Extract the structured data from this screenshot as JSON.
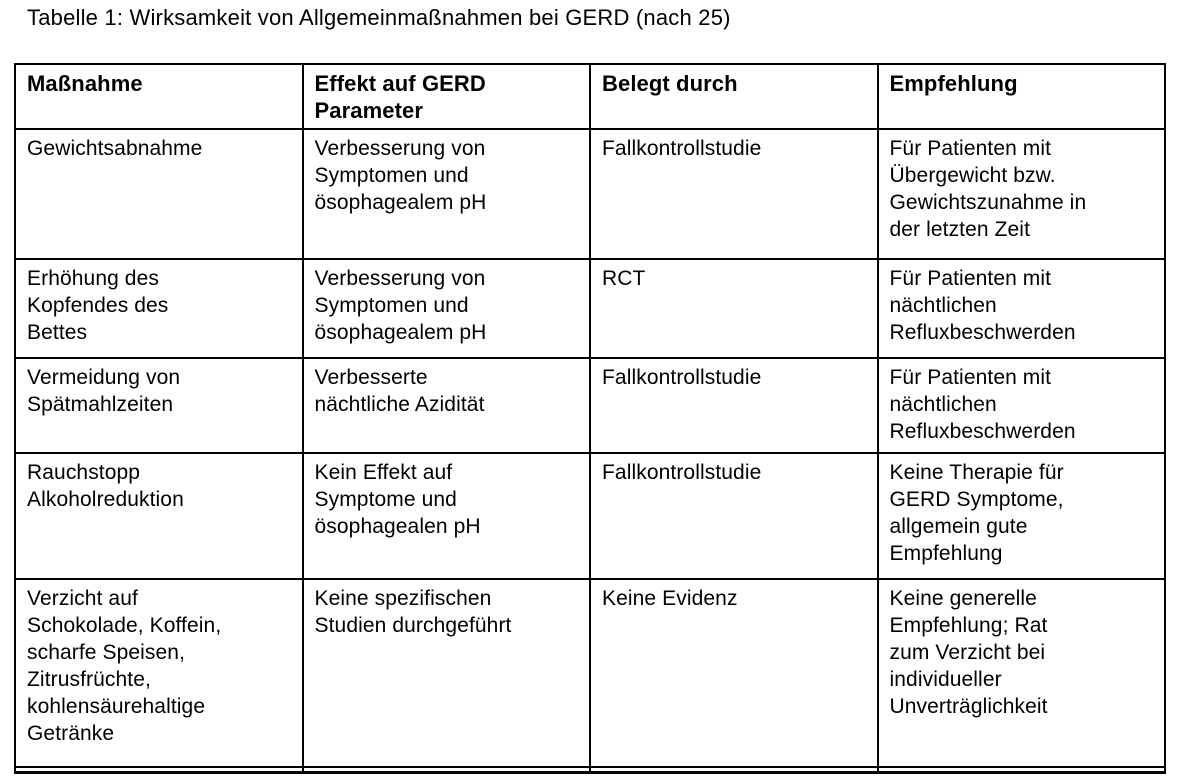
{
  "title": "Tabelle 1: Wirksamkeit von Allgemeinmaßnahmen bei GERD (nach 25)",
  "colors": {
    "text": "#000000",
    "border": "#000000",
    "background": "#ffffff"
  },
  "table": {
    "headers": [
      "Maßnahme",
      "Effekt auf GERD\nParameter",
      "Belegt durch",
      "Empfehlung"
    ],
    "rows": [
      [
        "Gewichtsabnahme",
        "Verbesserung von\nSymptomen und\nösophagealem pH",
        "Fallkontrollstudie",
        "Für Patienten mit\nÜbergewicht bzw.\nGewichtszunahme in\nder letzten Zeit"
      ],
      [
        "Erhöhung des\nKopfendes des\nBettes",
        "Verbesserung von\nSymptomen und\nösophagealem pH",
        "RCT",
        "Für Patienten mit\nnächtlichen\nRefluxbeschwerden"
      ],
      [
        "Vermeidung von\nSpätmahlzeiten",
        "Verbesserte\nnächtliche Azidität",
        "Fallkontrollstudie",
        "Für Patienten mit\nnächtlichen\nRefluxbeschwerden"
      ],
      [
        "Rauchstopp\nAlkoholreduktion",
        "Kein Effekt auf\nSymptome und\nösophagealen pH",
        "Fallkontrollstudie",
        "Keine Therapie für\nGERD Symptome,\nallgemein gute\nEmpfehlung"
      ],
      [
        "Verzicht auf\nSchokolade, Koffein,\nscharfe Speisen,\nZitrusfrüchte,\nkohlensäurehaltige\nGetränke",
        "Keine spezifischen\nStudien durchgeführt",
        "Keine Evidenz",
        "Keine generelle\nEmpfehlung; Rat\nzum Verzicht bei\nindividueller\nUnverträglichkeit"
      ]
    ]
  }
}
